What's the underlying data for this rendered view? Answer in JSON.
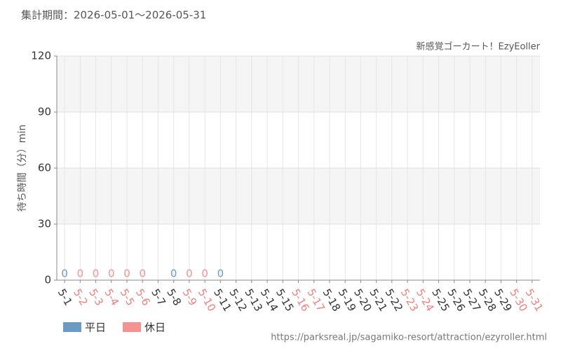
{
  "chart_data": {
    "type": "bar",
    "subtitle": "集計期間：2026-05-01～2026-05-31",
    "title": "新感覚ゴーカート！EzyEoller",
    "y_label": "待ち時間（分）min",
    "source": "https://parksreal.jp/sagamiko-resort/attraction/ezyroller.html",
    "categories": [
      "5-1",
      "5-2",
      "5-3",
      "5-4",
      "5-5",
      "5-6",
      "5-7",
      "5-8",
      "5-9",
      "5-10",
      "5-11",
      "5-12",
      "5-13",
      "5-14",
      "5-15",
      "5-16",
      "5-17",
      "5-18",
      "5-19",
      "5-20",
      "5-21",
      "5-22",
      "5-23",
      "5-24",
      "5-25",
      "5-26",
      "5-27",
      "5-28",
      "5-29",
      "5-30",
      "5-31"
    ],
    "category_colors": [
      "#333",
      "#f08080",
      "#f08080",
      "#f08080",
      "#f08080",
      "#f08080",
      "#333",
      "#333",
      "#f08080",
      "#f08080",
      "#333",
      "#333",
      "#333",
      "#333",
      "#333",
      "#f08080",
      "#f08080",
      "#333",
      "#333",
      "#333",
      "#333",
      "#333",
      "#f08080",
      "#f08080",
      "#333",
      "#333",
      "#333",
      "#333",
      "#333",
      "#f08080",
      "#f08080"
    ],
    "series": [
      {
        "name": "平日",
        "color": "#6b9bc3",
        "values": [
          0,
          null,
          null,
          null,
          null,
          null,
          null,
          0,
          null,
          null,
          0,
          null,
          null,
          null,
          null,
          null,
          null,
          null,
          null,
          null,
          null,
          null,
          null,
          null,
          null,
          null,
          null,
          null,
          null,
          null,
          null
        ]
      },
      {
        "name": "休日",
        "color": "#f49393",
        "values": [
          null,
          0,
          0,
          0,
          0,
          0,
          null,
          null,
          0,
          0,
          null,
          null,
          null,
          null,
          null,
          null,
          null,
          null,
          null,
          null,
          null,
          null,
          null,
          null,
          null,
          null,
          null,
          null,
          null,
          null,
          null
        ]
      }
    ],
    "ylim": [
      0,
      120
    ],
    "yticks": [
      0,
      30,
      60,
      90,
      120
    ],
    "grid": true
  }
}
